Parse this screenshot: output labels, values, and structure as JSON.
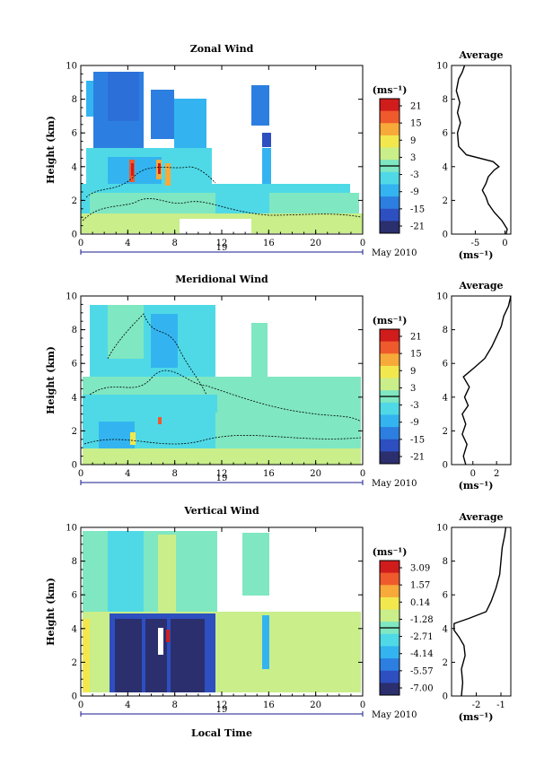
{
  "colors": {
    "scale": [
      "#2b2f6e",
      "#2d4fc0",
      "#2c7fe0",
      "#33b4f0",
      "#4fd9e6",
      "#7fe7c2",
      "#c9ee8a",
      "#f2e84e",
      "#f7a93a",
      "#ef5a2c",
      "#d11c1c"
    ],
    "contour": "#000000",
    "axis": "#000000",
    "time_axis": "#1a1a8c"
  },
  "time_axis": {
    "day_label": "19",
    "month_label": "May 2010",
    "xlabel": "Local Time"
  },
  "chart_data": [
    {
      "type": "heatmap",
      "title": "Zonal Wind",
      "ylabel": "Height (km)",
      "x_ticks": [
        "0",
        "4",
        "8",
        "12",
        "16",
        "20",
        "0"
      ],
      "y_ticks": [
        "0",
        "2",
        "4",
        "6",
        "8",
        "10"
      ],
      "xlim": [
        0,
        24
      ],
      "ylim": [
        0,
        10
      ],
      "colorbar": {
        "unit": "(ms⁻¹)",
        "ticks": [
          "21",
          "15",
          "9",
          "3",
          "-3",
          "-9",
          "-15",
          "-21"
        ]
      },
      "profile": {
        "title": "Average",
        "xlabel": "(ms⁻¹)",
        "x_ticks": [
          "-5",
          "0"
        ],
        "y_ticks": [
          "0",
          "2",
          "4",
          "6",
          "8",
          "10"
        ],
        "xlim": [
          -9,
          1
        ],
        "ylim": [
          0,
          10
        ],
        "points": [
          [
            0.2,
            0
          ],
          [
            0.4,
            0.3
          ],
          [
            -0.5,
            0.8
          ],
          [
            -1.8,
            1.3
          ],
          [
            -2.8,
            1.8
          ],
          [
            -3.2,
            2.2
          ],
          [
            -3.8,
            2.6
          ],
          [
            -3.2,
            3.0
          ],
          [
            -2.8,
            3.4
          ],
          [
            -1.8,
            3.8
          ],
          [
            -1.0,
            4.0
          ],
          [
            -2.0,
            4.3
          ],
          [
            -6.5,
            4.7
          ],
          [
            -7.8,
            5.2
          ],
          [
            -8.0,
            6.0
          ],
          [
            -7.5,
            6.6
          ],
          [
            -8.0,
            7.2
          ],
          [
            -7.6,
            7.8
          ],
          [
            -8.2,
            8.5
          ],
          [
            -7.8,
            9.2
          ],
          [
            -7.2,
            9.6
          ],
          [
            -6.8,
            10.0
          ]
        ]
      }
    },
    {
      "type": "heatmap",
      "title": "Meridional Wind",
      "ylabel": "Height (km)",
      "x_ticks": [
        "0",
        "4",
        "8",
        "12",
        "16",
        "20",
        "0"
      ],
      "y_ticks": [
        "0",
        "2",
        "4",
        "6",
        "8",
        "10"
      ],
      "xlim": [
        0,
        24
      ],
      "ylim": [
        0,
        10
      ],
      "colorbar": {
        "unit": "(ms⁻¹)",
        "ticks": [
          "21",
          "15",
          "9",
          "3",
          "-3",
          "-9",
          "-15",
          "-21"
        ]
      },
      "profile": {
        "title": "Average",
        "xlabel": "(ms⁻¹)",
        "x_ticks": [
          "0",
          "2"
        ],
        "y_ticks": [
          "0",
          "2",
          "4",
          "6",
          "8",
          "10"
        ],
        "xlim": [
          -1.8,
          3.2
        ],
        "ylim": [
          0,
          10
        ],
        "points": [
          [
            -0.6,
            0
          ],
          [
            -0.8,
            0.5
          ],
          [
            -0.5,
            1.2
          ],
          [
            -0.9,
            1.8
          ],
          [
            -0.6,
            2.4
          ],
          [
            -0.9,
            3.0
          ],
          [
            -0.4,
            3.5
          ],
          [
            -0.7,
            4.0
          ],
          [
            -0.3,
            4.6
          ],
          [
            -0.8,
            5.2
          ],
          [
            0.2,
            5.8
          ],
          [
            1.0,
            6.3
          ],
          [
            1.6,
            7.0
          ],
          [
            2.0,
            7.6
          ],
          [
            2.4,
            8.2
          ],
          [
            2.6,
            8.8
          ],
          [
            3.0,
            9.4
          ],
          [
            3.2,
            10.0
          ]
        ]
      }
    },
    {
      "type": "heatmap",
      "title": "Vertical Wind",
      "ylabel": "Height (km)",
      "x_ticks": [
        "0",
        "4",
        "8",
        "12",
        "16",
        "20",
        "0"
      ],
      "y_ticks": [
        "0",
        "2",
        "4",
        "6",
        "8",
        "10"
      ],
      "xlim": [
        0,
        24
      ],
      "ylim": [
        0,
        10
      ],
      "colorbar": {
        "unit": "(ms⁻¹)",
        "ticks": [
          "3.09",
          "1.57",
          "0.14",
          "-1.28",
          "-2.71",
          "-4.14",
          "-5.57",
          "-7.00"
        ]
      },
      "profile": {
        "title": "Average",
        "xlabel": "(ms⁻¹)",
        "x_ticks": [
          "-2",
          "-1"
        ],
        "y_ticks": [
          "0",
          "2",
          "4",
          "6",
          "8",
          "10"
        ],
        "xlim": [
          -3.0,
          -0.6
        ],
        "ylim": [
          0,
          10
        ],
        "points": [
          [
            -2.6,
            0
          ],
          [
            -2.55,
            0.8
          ],
          [
            -2.6,
            1.6
          ],
          [
            -2.45,
            2.4
          ],
          [
            -2.5,
            3.0
          ],
          [
            -2.7,
            3.5
          ],
          [
            -2.9,
            3.9
          ],
          [
            -2.9,
            4.3
          ],
          [
            -2.3,
            4.6
          ],
          [
            -1.6,
            5.0
          ],
          [
            -1.4,
            5.6
          ],
          [
            -1.2,
            6.4
          ],
          [
            -1.05,
            7.2
          ],
          [
            -1.0,
            8.0
          ],
          [
            -0.95,
            8.8
          ],
          [
            -0.85,
            9.5
          ],
          [
            -0.8,
            10.0
          ]
        ]
      }
    }
  ]
}
